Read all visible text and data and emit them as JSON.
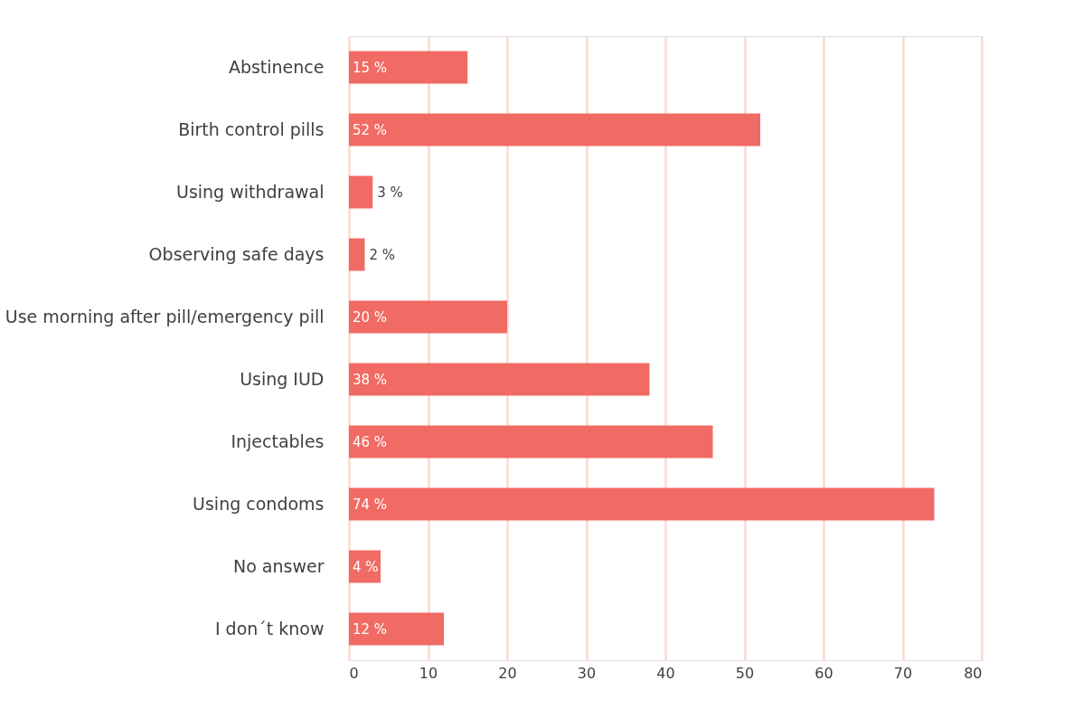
{
  "chart_data": {
    "type": "bar",
    "orientation": "horizontal",
    "categories": [
      "Abstinence",
      "Birth control pills",
      "Using withdrawal",
      "Observing safe days",
      "Use morning after pill/emergency pill",
      "Using IUD",
      "Injectables",
      "Using condoms",
      "No answer",
      "I don´t know"
    ],
    "values": [
      15,
      52,
      3,
      2,
      20,
      38,
      46,
      74,
      4,
      12
    ],
    "value_labels": [
      "15 %",
      "52 %",
      "3 %",
      "2 %",
      "20 %",
      "38 %",
      "46 %",
      "74 %",
      "4 %",
      "12 %"
    ],
    "color": "#f06b63",
    "xlim": [
      0,
      80
    ],
    "xticks": [
      0,
      10,
      20,
      30,
      40,
      50,
      60,
      70,
      80
    ],
    "grid": "x"
  }
}
